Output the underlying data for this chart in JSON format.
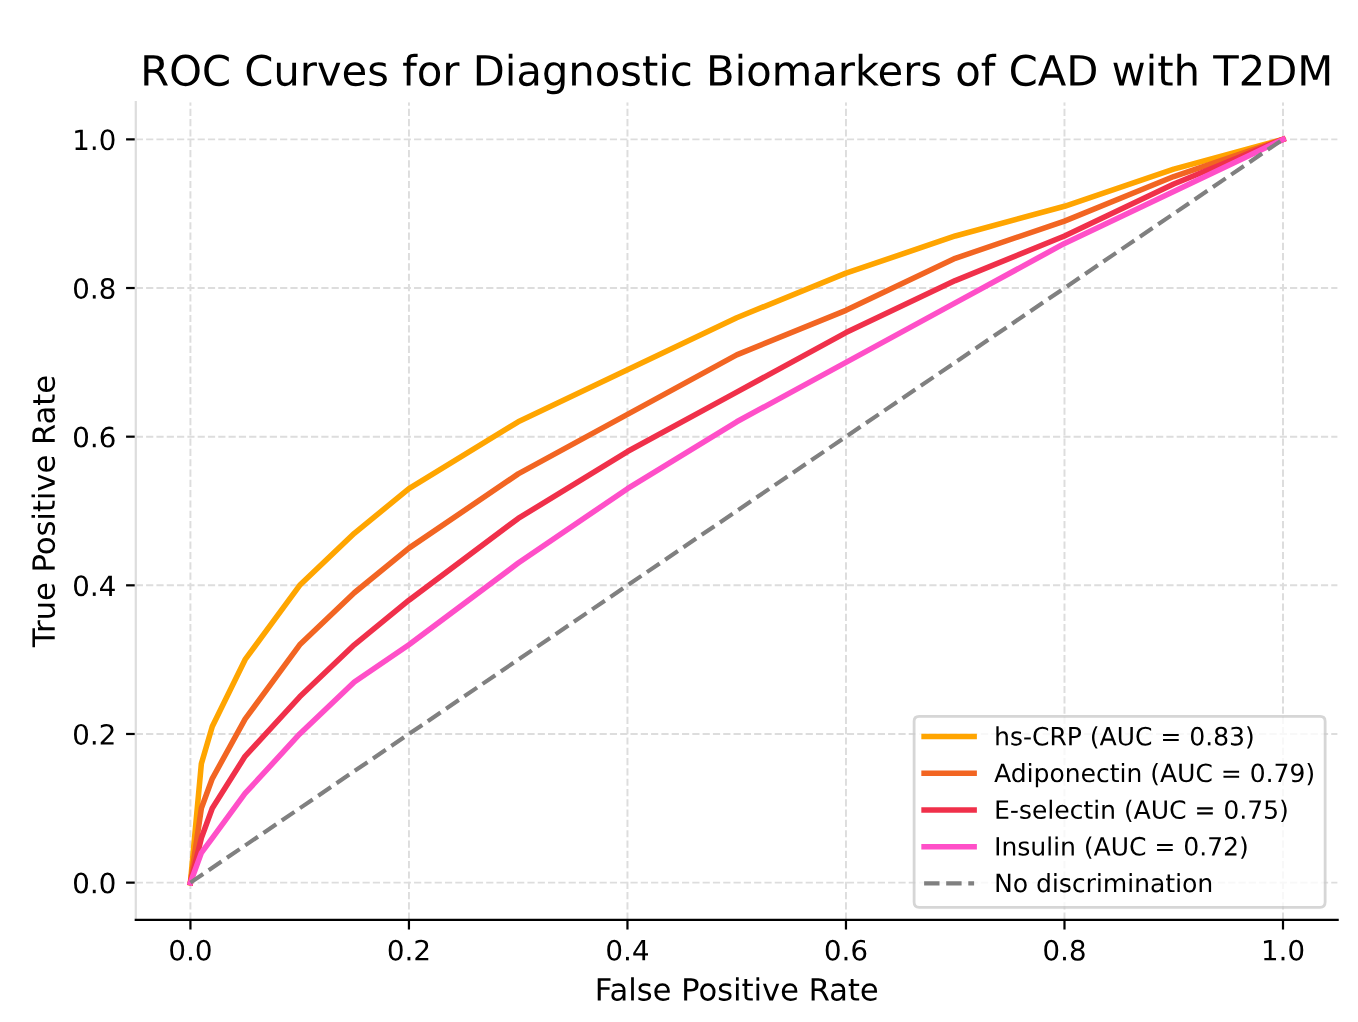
{
  "chart_data": {
    "type": "line",
    "title": "ROC Curves for Diagnostic Biomarkers of CAD with T2DM",
    "xlabel": "False Positive Rate",
    "ylabel": "True Positive Rate",
    "x": [
      0,
      0.01,
      0.02,
      0.05,
      0.1,
      0.15,
      0.2,
      0.3,
      0.4,
      0.5,
      0.6,
      0.7,
      0.8,
      0.9,
      1.0
    ],
    "series": [
      {
        "name": "hs-CRP (AUC = 0.83)",
        "color": "#ffa500",
        "values": [
          0,
          0.16,
          0.21,
          0.3,
          0.4,
          0.47,
          0.53,
          0.62,
          0.69,
          0.76,
          0.82,
          0.87,
          0.91,
          0.96,
          1.0
        ]
      },
      {
        "name": "Adiponectin (AUC = 0.79)",
        "color": "#f26522",
        "values": [
          0,
          0.1,
          0.14,
          0.22,
          0.32,
          0.39,
          0.45,
          0.55,
          0.63,
          0.71,
          0.77,
          0.84,
          0.89,
          0.95,
          1.0
        ]
      },
      {
        "name": "E-selectin (AUC = 0.75)",
        "color": "#f0304a",
        "values": [
          0,
          0.06,
          0.1,
          0.17,
          0.25,
          0.32,
          0.38,
          0.49,
          0.58,
          0.66,
          0.74,
          0.81,
          0.87,
          0.94,
          1.0
        ]
      },
      {
        "name": "Insulin (AUC = 0.72)",
        "color": "#ff4fc8",
        "values": [
          0,
          0.04,
          0.06,
          0.12,
          0.2,
          0.27,
          0.32,
          0.43,
          0.53,
          0.62,
          0.7,
          0.78,
          0.86,
          0.93,
          1.0
        ]
      },
      {
        "name": "No discrimination",
        "color": "#808080",
        "line_style": "dashed",
        "x": [
          0,
          1
        ],
        "values": [
          0,
          1
        ]
      }
    ],
    "xlim": [
      -0.05,
      1.05
    ],
    "ylim": [
      -0.05,
      1.05
    ],
    "xticks": [
      {
        "value": 0,
        "label": "0.0"
      },
      0.2,
      0.4,
      0.6,
      0.8,
      {
        "value": 1,
        "label": "1.0"
      }
    ],
    "yticks": [
      {
        "value": 0,
        "label": "0.0"
      },
      0.2,
      0.4,
      0.6,
      0.8,
      {
        "value": 1,
        "label": "1.0"
      }
    ],
    "grid": true,
    "legend": "bottom right",
    "line_style": "solid",
    "marker": "none"
  }
}
